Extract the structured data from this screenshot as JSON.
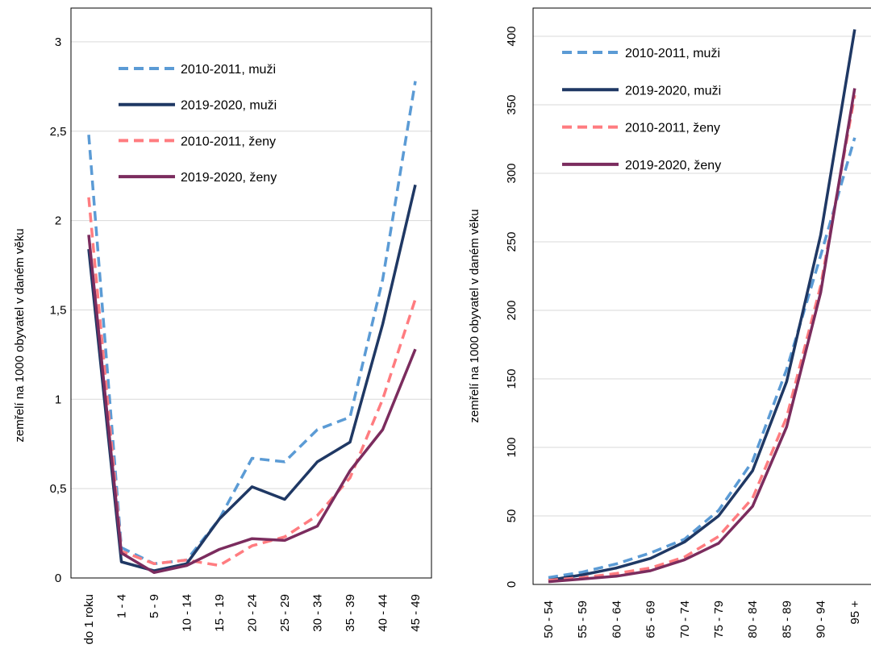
{
  "chart_data": [
    {
      "type": "line",
      "title": "",
      "xlabel": "",
      "ylabel": "zemřelí na 1000 obyvatel v daném věku",
      "categories": [
        "do 1 roku",
        "1 - 4",
        "5 - 9",
        "10 - 14",
        "15 - 19",
        "20 - 24",
        "25 - 29",
        "30 - 34",
        "35 - 39",
        "40 - 44",
        "45 - 49"
      ],
      "ylim": [
        0,
        3.25
      ],
      "yticks": [
        0,
        0.5,
        1,
        1.5,
        2,
        2.5,
        3
      ],
      "ytick_labels": [
        "0",
        "0,5",
        "1",
        "1,5",
        "2",
        "2,5",
        "3"
      ],
      "grid": true,
      "legend": "top-left",
      "series": [
        {
          "name": "2010-2011, muži",
          "color": "#5B9BD5",
          "style": "dashed",
          "values": [
            2.48,
            0.17,
            0.08,
            0.1,
            0.33,
            0.67,
            0.65,
            0.83,
            0.9,
            1.67,
            2.78
          ]
        },
        {
          "name": "2019-2020, muži",
          "color": "#1F3864",
          "style": "solid",
          "values": [
            1.84,
            0.09,
            0.04,
            0.08,
            0.33,
            0.51,
            0.44,
            0.65,
            0.76,
            1.42,
            2.2
          ]
        },
        {
          "name": "2010-2011, ženy",
          "color": "#FF7C80",
          "style": "dashed",
          "values": [
            2.13,
            0.15,
            0.08,
            0.1,
            0.07,
            0.18,
            0.23,
            0.35,
            0.56,
            1.0,
            1.56
          ]
        },
        {
          "name": "2019-2020, ženy",
          "color": "#7B2C5E",
          "style": "solid",
          "values": [
            1.92,
            0.14,
            0.03,
            0.07,
            0.16,
            0.22,
            0.21,
            0.29,
            0.6,
            0.83,
            1.28
          ]
        }
      ]
    },
    {
      "type": "line",
      "title": "",
      "xlabel": "",
      "ylabel": "zemřelí na 1000 obyvatel v daném věku",
      "categories": [
        "50 - 54",
        "55 - 59",
        "60 - 64",
        "65 - 69",
        "70 - 74",
        "75 - 79",
        "80 - 84",
        "85 - 89",
        "90 - 94",
        "95 +"
      ],
      "ylim": [
        0,
        415
      ],
      "yticks": [
        0,
        50,
        100,
        150,
        200,
        250,
        300,
        350,
        400
      ],
      "ytick_labels": [
        "0",
        "50",
        "100",
        "150",
        "200",
        "250",
        "300",
        "350",
        "400"
      ],
      "grid": true,
      "legend": "top-left",
      "series": [
        {
          "name": "2010-2011, muži",
          "color": "#5B9BD5",
          "style": "dashed",
          "values": [
            5,
            9,
            15,
            23,
            33,
            54,
            90,
            157,
            240,
            326
          ]
        },
        {
          "name": "2019-2020, muži",
          "color": "#1F3864",
          "style": "solid",
          "values": [
            3,
            7,
            12,
            19,
            31,
            50,
            83,
            148,
            255,
            405
          ]
        },
        {
          "name": "2010-2011, ženy",
          "color": "#FF7C80",
          "style": "dashed",
          "values": [
            3,
            5,
            8,
            12,
            20,
            35,
            63,
            122,
            218,
            357
          ]
        },
        {
          "name": "2019-2020, ženy",
          "color": "#7B2C5E",
          "style": "solid",
          "values": [
            2,
            4,
            6,
            10,
            18,
            30,
            57,
            115,
            213,
            362
          ]
        }
      ]
    }
  ]
}
